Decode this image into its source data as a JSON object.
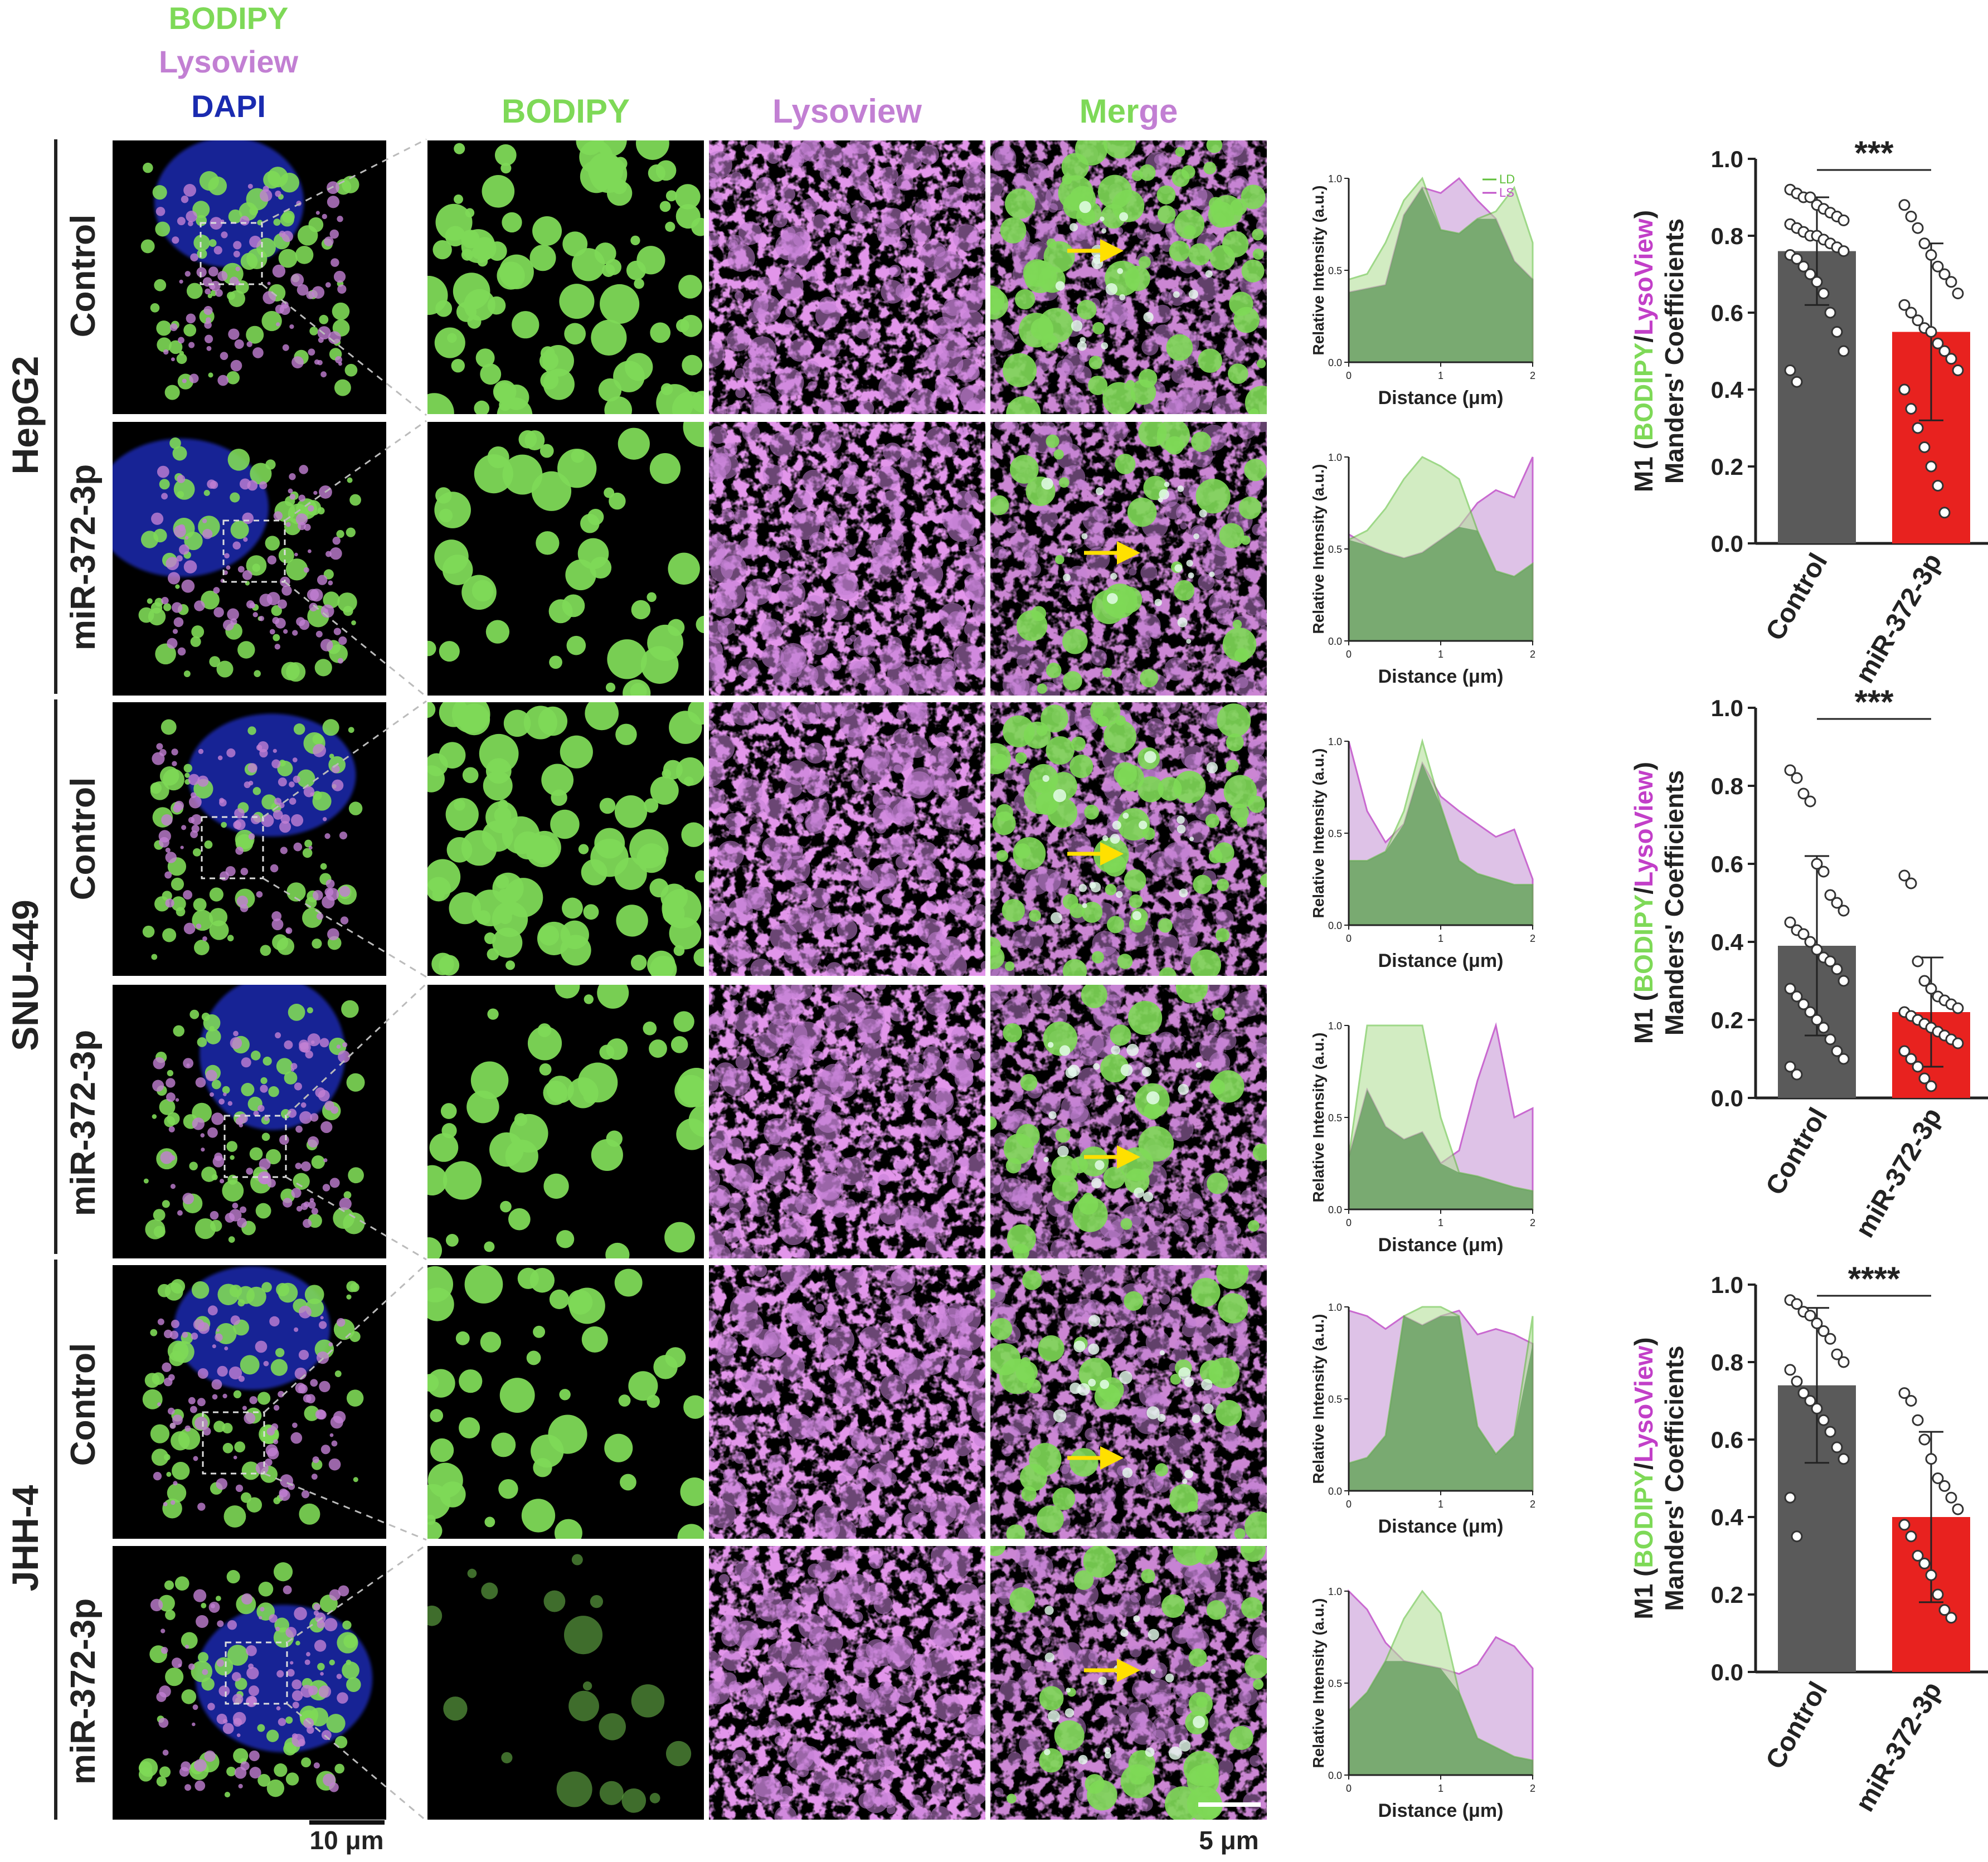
{
  "legend": {
    "bodipy": "BODIPY",
    "lysoview": "Lysoview",
    "dapi": "DAPI"
  },
  "columns": {
    "bodipy": "BODIPY",
    "lysoview": "Lysoview",
    "merge": "Merge"
  },
  "cell_lines": [
    "HepG2",
    "SNU-449",
    "JHH-4"
  ],
  "conditions": [
    "Control",
    "miR-372-3p",
    "Control",
    "miR-372-3p",
    "Control",
    "miR-372-3p"
  ],
  "scale_bars": {
    "overview": "10 μm",
    "zoom": "5 μm"
  },
  "colors": {
    "bodipy": "#7ed957",
    "lysoview": "#c27fd3",
    "dapi": "#1a2bb0",
    "control_bar": "#5a5a5a",
    "mir_bar": "#e8221f",
    "arrow": "#ffe000"
  },
  "profile_plots": {
    "ylabel": "Relative Intensity (a.u.)",
    "xlabel": "Distance (μm)",
    "legend": [
      "LD",
      "LS"
    ],
    "xticks": [
      "0",
      "1",
      "2"
    ],
    "yticks": [
      "0.0",
      "0.5",
      "1.0"
    ],
    "profiles": [
      {
        "x": [
          0,
          0.2,
          0.4,
          0.6,
          0.8,
          1.0,
          1.2,
          1.4,
          1.6,
          1.8,
          2.0
        ],
        "LD": [
          0.45,
          0.48,
          0.65,
          0.88,
          1.0,
          0.72,
          0.7,
          0.78,
          0.82,
          0.95,
          0.65
        ],
        "LS": [
          0.38,
          0.4,
          0.42,
          0.8,
          0.95,
          0.92,
          1.0,
          0.88,
          0.78,
          0.55,
          0.45
        ]
      },
      {
        "x": [
          0,
          0.2,
          0.4,
          0.6,
          0.8,
          1.0,
          1.2,
          1.4,
          1.6,
          1.8,
          2.0
        ],
        "LD": [
          0.55,
          0.6,
          0.72,
          0.88,
          1.0,
          0.95,
          0.88,
          0.6,
          0.38,
          0.35,
          0.42
        ],
        "LS": [
          0.58,
          0.52,
          0.48,
          0.45,
          0.48,
          0.55,
          0.62,
          0.75,
          0.82,
          0.78,
          1.0
        ]
      },
      {
        "x": [
          0,
          0.2,
          0.4,
          0.6,
          0.8,
          1.0,
          1.2,
          1.4,
          1.6,
          1.8,
          2.0
        ],
        "LD": [
          0.35,
          0.35,
          0.4,
          0.62,
          1.0,
          0.65,
          0.35,
          0.28,
          0.25,
          0.22,
          0.22
        ],
        "LS": [
          1.0,
          0.62,
          0.45,
          0.55,
          0.88,
          0.7,
          0.62,
          0.55,
          0.48,
          0.52,
          0.25
        ]
      },
      {
        "x": [
          0,
          0.2,
          0.4,
          0.6,
          0.8,
          1.0,
          1.2,
          1.4,
          1.6,
          1.8,
          2.0
        ],
        "LD": [
          0.28,
          1.0,
          1.0,
          1.0,
          1.0,
          0.5,
          0.2,
          0.18,
          0.15,
          0.12,
          0.1
        ],
        "LS": [
          0.28,
          0.65,
          0.45,
          0.38,
          0.42,
          0.25,
          0.32,
          0.7,
          1.0,
          0.5,
          0.55
        ]
      },
      {
        "x": [
          0,
          0.2,
          0.4,
          0.6,
          0.8,
          1.0,
          1.2,
          1.4,
          1.6,
          1.8,
          2.0
        ],
        "LD": [
          0.15,
          0.18,
          0.3,
          0.95,
          1.0,
          1.0,
          0.95,
          0.35,
          0.2,
          0.3,
          0.95
        ],
        "LS": [
          0.98,
          0.95,
          0.88,
          0.95,
          0.9,
          0.95,
          0.98,
          0.85,
          0.88,
          0.85,
          0.8
        ]
      },
      {
        "x": [
          0,
          0.2,
          0.4,
          0.6,
          0.8,
          1.0,
          1.2,
          1.4,
          1.6,
          1.8,
          2.0
        ],
        "LD": [
          0.35,
          0.45,
          0.62,
          0.85,
          1.0,
          0.88,
          0.45,
          0.2,
          0.15,
          0.1,
          0.08
        ],
        "LS": [
          1.0,
          0.9,
          0.72,
          0.62,
          0.6,
          0.58,
          0.55,
          0.6,
          0.75,
          0.7,
          0.58
        ]
      }
    ]
  },
  "chart_data": [
    {
      "type": "bar",
      "ylabel_prefix": "M1 (",
      "ylabel_green": "BODIPY",
      "ylabel_slash": "/",
      "ylabel_magenta": "LysoView",
      "ylabel_suffix": ")",
      "ylabel_line2": "Manders' Coefficients",
      "categories": [
        "Control",
        "miR-372-3p"
      ],
      "values": [
        0.76,
        0.55
      ],
      "errors": [
        0.14,
        0.23
      ],
      "ylim": [
        0,
        1.0
      ],
      "yticks": [
        "0.0",
        "0.2",
        "0.4",
        "0.6",
        "0.8",
        "1.0"
      ],
      "significance": "***",
      "points": [
        [
          0.92,
          0.91,
          0.9,
          0.9,
          0.88,
          0.87,
          0.86,
          0.85,
          0.84,
          0.83,
          0.82,
          0.81,
          0.8,
          0.8,
          0.79,
          0.78,
          0.77,
          0.76,
          0.75,
          0.74,
          0.72,
          0.7,
          0.68,
          0.65,
          0.6,
          0.55,
          0.5,
          0.45,
          0.42
        ],
        [
          0.88,
          0.85,
          0.82,
          0.78,
          0.75,
          0.72,
          0.7,
          0.68,
          0.65,
          0.62,
          0.6,
          0.58,
          0.56,
          0.55,
          0.52,
          0.5,
          0.48,
          0.45,
          0.4,
          0.35,
          0.3,
          0.25,
          0.2,
          0.15,
          0.08
        ]
      ]
    },
    {
      "type": "bar",
      "ylabel_prefix": "M1 (",
      "ylabel_green": "BODIPY",
      "ylabel_slash": "/",
      "ylabel_magenta": "LysoView",
      "ylabel_suffix": ")",
      "ylabel_line2": "Manders' Coefficients",
      "categories": [
        "Control",
        "miR-372-3p"
      ],
      "values": [
        0.39,
        0.22
      ],
      "errors": [
        0.23,
        0.14
      ],
      "ylim": [
        0,
        1.0
      ],
      "yticks": [
        "0.0",
        "0.2",
        "0.4",
        "0.6",
        "0.8",
        "1.0"
      ],
      "significance": "***",
      "points": [
        [
          0.84,
          0.82,
          0.78,
          0.76,
          0.6,
          0.58,
          0.52,
          0.5,
          0.48,
          0.45,
          0.43,
          0.42,
          0.4,
          0.38,
          0.36,
          0.35,
          0.33,
          0.3,
          0.28,
          0.26,
          0.24,
          0.22,
          0.2,
          0.18,
          0.15,
          0.12,
          0.1,
          0.08,
          0.06
        ],
        [
          0.57,
          0.55,
          0.35,
          0.3,
          0.28,
          0.26,
          0.25,
          0.24,
          0.23,
          0.22,
          0.21,
          0.2,
          0.19,
          0.18,
          0.17,
          0.16,
          0.15,
          0.14,
          0.12,
          0.1,
          0.08,
          0.05,
          0.03
        ]
      ]
    },
    {
      "type": "bar",
      "ylabel_prefix": "M1 (",
      "ylabel_green": "BODIPY",
      "ylabel_slash": "/",
      "ylabel_magenta": "LysoView",
      "ylabel_suffix": ")",
      "ylabel_line2": "Manders' Coefficients",
      "categories": [
        "Control",
        "miR-372-3p"
      ],
      "values": [
        0.74,
        0.4
      ],
      "errors": [
        0.2,
        0.22
      ],
      "ylim": [
        0,
        1.0
      ],
      "yticks": [
        "0.0",
        "0.2",
        "0.4",
        "0.6",
        "0.8",
        "1.0"
      ],
      "significance": "****",
      "points": [
        [
          0.96,
          0.95,
          0.93,
          0.92,
          0.9,
          0.88,
          0.86,
          0.82,
          0.8,
          0.78,
          0.75,
          0.72,
          0.7,
          0.68,
          0.65,
          0.62,
          0.58,
          0.55,
          0.45,
          0.35
        ],
        [
          0.72,
          0.7,
          0.65,
          0.6,
          0.55,
          0.5,
          0.48,
          0.45,
          0.42,
          0.38,
          0.35,
          0.3,
          0.28,
          0.25,
          0.2,
          0.16,
          0.14
        ]
      ]
    }
  ]
}
